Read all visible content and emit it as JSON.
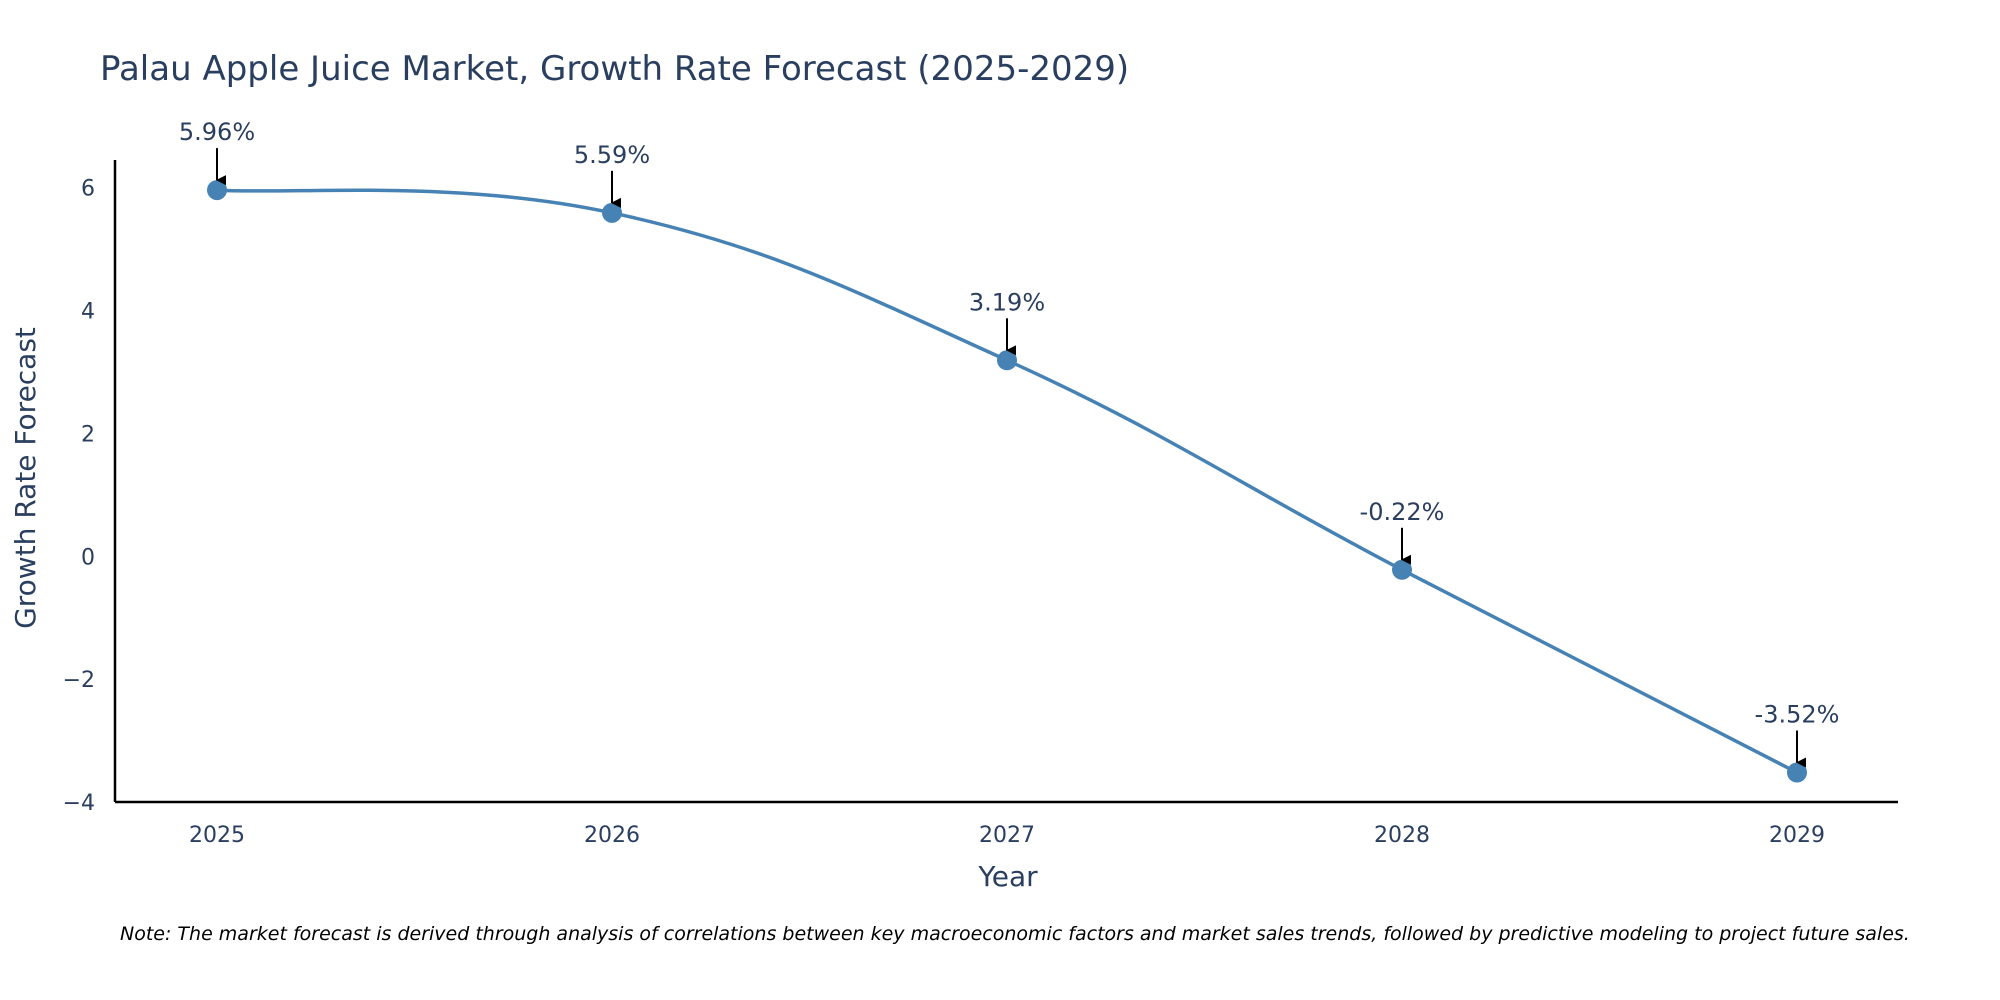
{
  "chart_data": {
    "type": "line",
    "title": "Palau Apple Juice Market, Growth Rate Forecast (2025-2029)",
    "xlabel": "Year",
    "ylabel": "Growth Rate Forecast",
    "x": [
      "2025",
      "2026",
      "2027",
      "2028",
      "2029"
    ],
    "series": [
      {
        "name": "Growth Rate Forecast",
        "values": [
          5.96,
          5.59,
          3.19,
          -0.22,
          -3.52
        ],
        "labels": [
          "5.96%",
          "5.59%",
          "3.19%",
          "-0.22%",
          "-3.52%"
        ]
      }
    ],
    "yticks": [
      "−4",
      "−2",
      "0",
      "2",
      "4",
      "6"
    ],
    "ytick_values": [
      -4,
      -2,
      0,
      2,
      4,
      6
    ],
    "ylim": [
      -4,
      6.45
    ],
    "grid": false,
    "note": "Note: The market forecast is derived through analysis of correlations between key macroeconomic factors and market sales trends, followed by predictive modeling to project future sales.",
    "colors": {
      "line": "#4682b4",
      "marker": "#4682b4",
      "axis": "#000000",
      "text": "#2a3f5f",
      "arrow": "#000000"
    }
  }
}
